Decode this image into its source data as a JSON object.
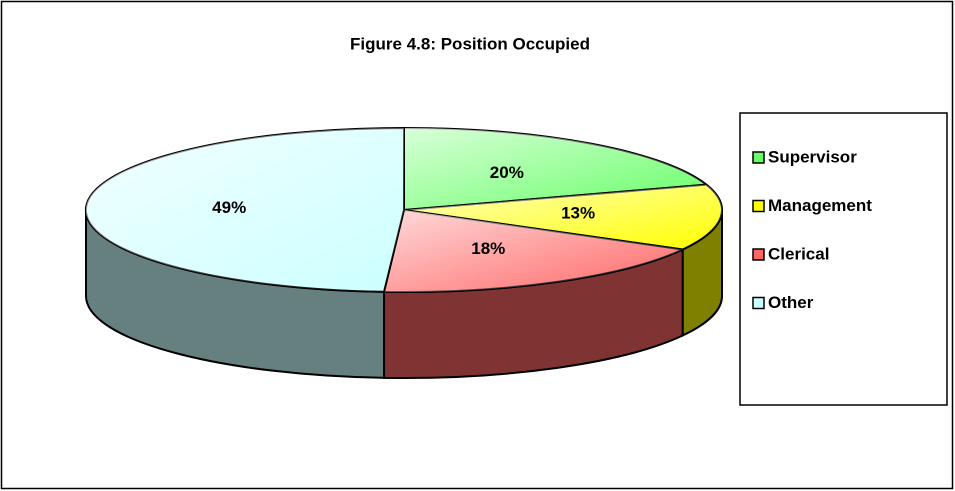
{
  "chart_data": {
    "type": "pie",
    "title": "Figure 4.8: Position Occupied",
    "categories": [
      "Supervisor",
      "Management",
      "Clerical",
      "Other"
    ],
    "values": [
      20,
      13,
      18,
      49
    ],
    "value_labels": [
      "20%",
      "13%",
      "18%",
      "49%"
    ],
    "colors": [
      "#66ff66",
      "#ffff00",
      "#ff6666",
      "#ccffff"
    ],
    "legend": "right"
  }
}
